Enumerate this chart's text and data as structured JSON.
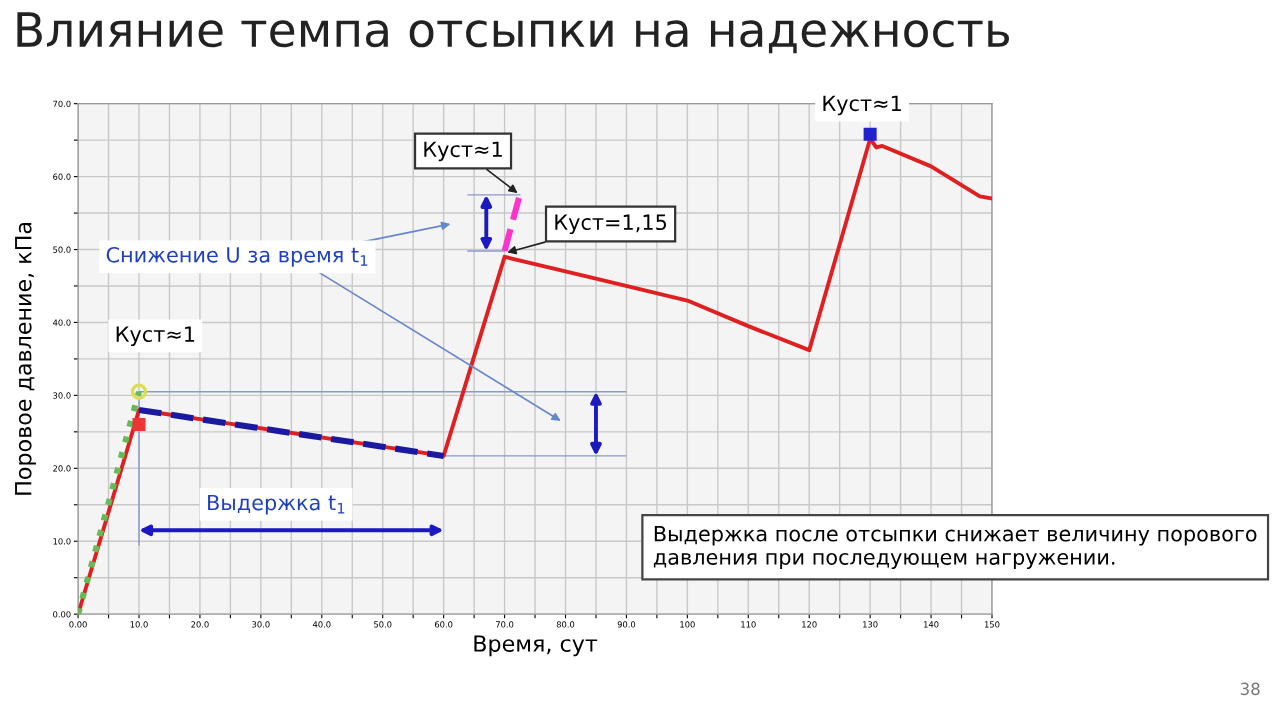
{
  "chart_data": {
    "type": "line",
    "title": "Влияние темпа отсыпки на надежность",
    "xlabel": "Время, сут",
    "ylabel": "Поровое давление, кПа",
    "xlim": [
      0,
      150
    ],
    "ylim": [
      0,
      70
    ],
    "xticks": [
      {
        "value": 0,
        "label": "0.00"
      },
      {
        "value": 5,
        "label": null
      },
      {
        "value": 10,
        "label": "10.0"
      },
      {
        "value": 15,
        "label": null
      },
      {
        "value": 20,
        "label": "20.0"
      },
      {
        "value": 25,
        "label": null
      },
      {
        "value": 30,
        "label": "30.0"
      },
      {
        "value": 35,
        "label": null
      },
      {
        "value": 40,
        "label": "40.0"
      },
      {
        "value": 45,
        "label": null
      },
      {
        "value": 50,
        "label": "50.0"
      },
      {
        "value": 55,
        "label": null
      },
      {
        "value": 60,
        "label": "60.0"
      },
      {
        "value": 65,
        "label": null
      },
      {
        "value": 70,
        "label": "70.0"
      },
      {
        "value": 75,
        "label": null
      },
      {
        "value": 80,
        "label": "80.0"
      },
      {
        "value": 85,
        "label": null
      },
      {
        "value": 90,
        "label": "90.0"
      },
      {
        "value": 95,
        "label": null
      },
      100,
      {
        "value": 105,
        "label": null
      },
      110,
      {
        "value": 115,
        "label": null
      },
      120,
      {
        "value": 125,
        "label": null
      },
      130,
      {
        "value": 135,
        "label": null
      },
      140,
      {
        "value": 145,
        "label": null
      },
      150
    ],
    "yticks": [
      {
        "value": 0,
        "label": "0.00"
      },
      {
        "value": 5,
        "label": null
      },
      {
        "value": 10,
        "label": "10.0"
      },
      {
        "value": 15,
        "label": null
      },
      {
        "value": 20,
        "label": "20.0"
      },
      {
        "value": 25,
        "label": null
      },
      {
        "value": 30,
        "label": "30.0"
      },
      {
        "value": 35,
        "label": null
      },
      {
        "value": 40,
        "label": "40.0"
      },
      {
        "value": 45,
        "label": null
      },
      {
        "value": 50,
        "label": "50.0"
      },
      {
        "value": 55,
        "label": null
      },
      {
        "value": 60,
        "label": "60.0"
      },
      {
        "value": 65,
        "label": null
      },
      {
        "value": 70,
        "label": "70.0"
      }
    ],
    "grid": true,
    "ref_lines": [
      {
        "axis": "y",
        "value": 30.5,
        "color": "#8899cc"
      },
      {
        "axis": "y",
        "value": 21.7,
        "color": "#8899cc"
      }
    ],
    "series": [
      {
        "color": "#e02020",
        "x": [
          0,
          10,
          60,
          70,
          85,
          100,
          110,
          120,
          130,
          131,
          132,
          140,
          148,
          150
        ],
        "values": [
          0,
          28,
          21.7,
          49,
          46,
          43,
          39.5,
          36.2,
          65.2,
          64,
          64.2,
          61.4,
          57.3,
          57
        ],
        "line_style": "solid",
        "marker": "none"
      },
      {
        "color": "#66bb55",
        "x": [
          0,
          10
        ],
        "values": [
          0,
          30.5
        ],
        "line_style": "dotted",
        "marker": "none"
      },
      {
        "color": "#1a1aa0",
        "x": [
          10,
          60
        ],
        "values": [
          28,
          21.7
        ],
        "line_style": "dashed",
        "marker": "none"
      },
      {
        "color": "#ff33cc",
        "x": [
          70,
          72.5
        ],
        "values": [
          49.8,
          57.5
        ],
        "line_style": "dashed",
        "marker": "none"
      },
      {
        "color": "#ee3333",
        "type": "scatter",
        "x": [
          10
        ],
        "values": [
          26
        ],
        "marker": "square"
      },
      {
        "color": "#dddd55",
        "type": "scatter",
        "x": [
          10
        ],
        "values": [
          30.5
        ],
        "marker": "circle"
      },
      {
        "color": "#2222cc",
        "type": "scatter",
        "x": [
          130
        ],
        "values": [
          65.8
        ],
        "marker": "square"
      }
    ],
    "annotations": [
      {
        "text": "Куст≈1",
        "x": 72.5,
        "y": 57.5
      },
      {
        "text": "Куст=1,15",
        "x": 70,
        "y": 49.5
      },
      {
        "text": "Куст≈1",
        "x": 130,
        "y": 65.8
      },
      "Куст≈1",
      "Снижение U за время t$_{1}$",
      "Выдержка t$_{1}$",
      "Выдержка после отсыпки снижает величину порового давления при последующем нагружении.",
      "38"
    ]
  }
}
